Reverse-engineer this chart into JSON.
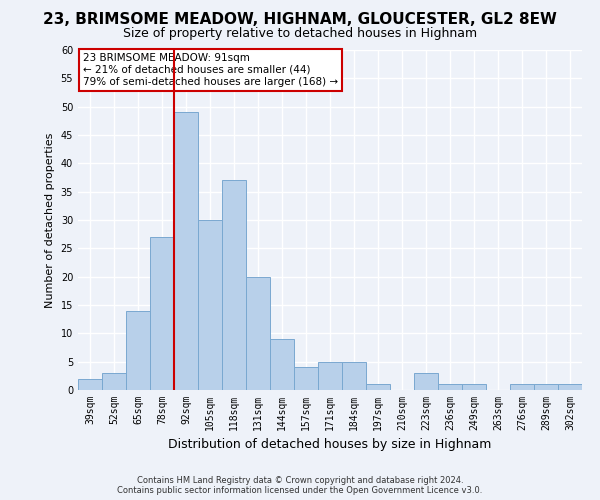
{
  "title": "23, BRIMSOME MEADOW, HIGHNAM, GLOUCESTER, GL2 8EW",
  "subtitle": "Size of property relative to detached houses in Highnam",
  "xlabel": "Distribution of detached houses by size in Highnam",
  "ylabel": "Number of detached properties",
  "footer_line1": "Contains HM Land Registry data © Crown copyright and database right 2024.",
  "footer_line2": "Contains public sector information licensed under the Open Government Licence v3.0.",
  "categories": [
    "39sqm",
    "52sqm",
    "65sqm",
    "78sqm",
    "92sqm",
    "105sqm",
    "118sqm",
    "131sqm",
    "144sqm",
    "157sqm",
    "171sqm",
    "184sqm",
    "197sqm",
    "210sqm",
    "223sqm",
    "236sqm",
    "249sqm",
    "263sqm",
    "276sqm",
    "289sqm",
    "302sqm"
  ],
  "values": [
    2,
    3,
    14,
    27,
    49,
    30,
    37,
    20,
    9,
    4,
    5,
    5,
    1,
    0,
    3,
    1,
    1,
    0,
    1,
    1,
    1
  ],
  "bar_color": "#b8d0ea",
  "bar_edge_color": "#7aa8d0",
  "highlight_bar_index": 4,
  "annotation_title": "23 BRIMSOME MEADOW: 91sqm",
  "annotation_line1": "← 21% of detached houses are smaller (44)",
  "annotation_line2": "79% of semi-detached houses are larger (168) →",
  "annotation_box_color": "#ffffff",
  "annotation_box_edge_color": "#cc0000",
  "vertical_line_color": "#cc0000",
  "ylim": [
    0,
    60
  ],
  "yticks": [
    0,
    5,
    10,
    15,
    20,
    25,
    30,
    35,
    40,
    45,
    50,
    55,
    60
  ],
  "bg_color": "#eef2f9",
  "grid_color": "#ffffff",
  "title_fontsize": 11,
  "subtitle_fontsize": 9,
  "xlabel_fontsize": 9,
  "ylabel_fontsize": 8,
  "tick_fontsize": 7,
  "footer_fontsize": 6,
  "annotation_fontsize": 7.5
}
